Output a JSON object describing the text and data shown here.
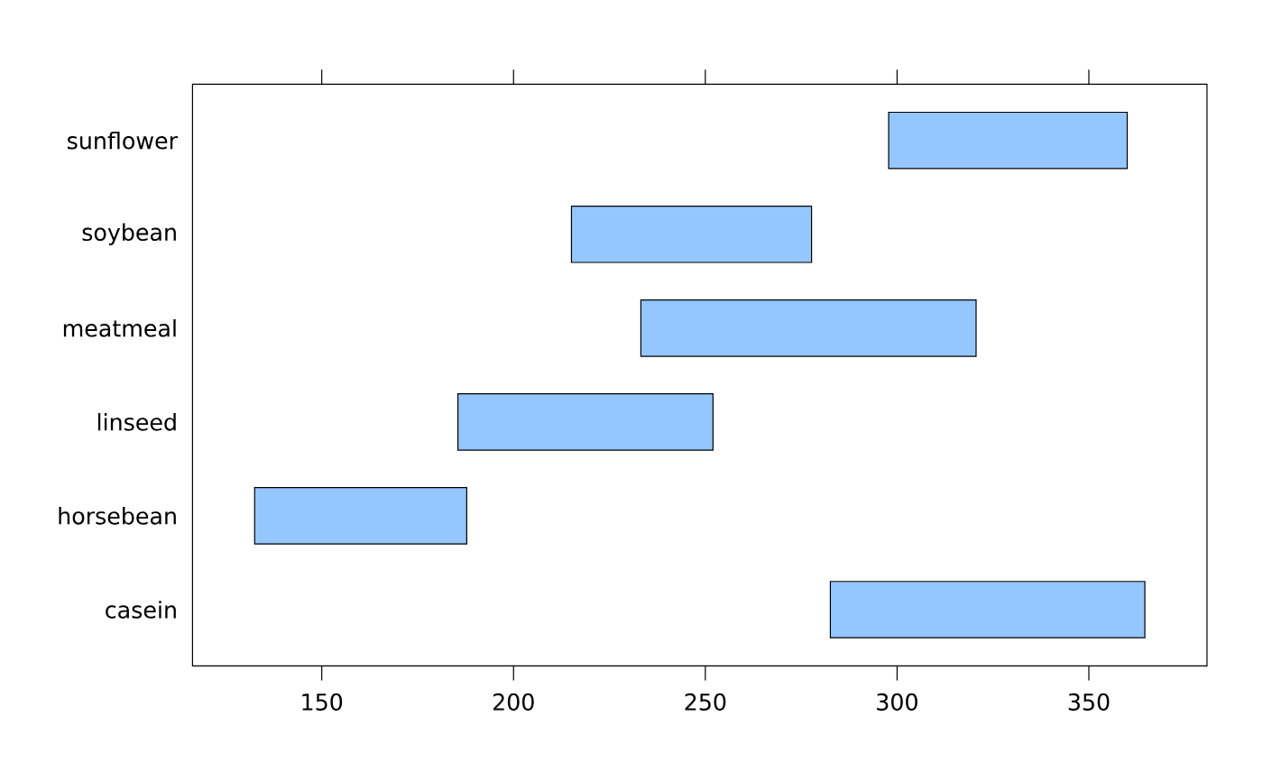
{
  "chart_data": {
    "type": "bar",
    "orientation": "horizontal",
    "categories": [
      "sunflower",
      "soybean",
      "meatmeal",
      "linseed",
      "horsebean",
      "casein"
    ],
    "base": [
      297.8,
      215.1,
      233.2,
      185.5,
      132.5,
      282.6
    ],
    "values": [
      62.2,
      62.6,
      87.4,
      66.5,
      55.3,
      82.0
    ],
    "color": "#94c6ff",
    "xlim": [
      116.3,
      380.8
    ],
    "xticks": [
      150,
      200,
      250,
      300,
      350
    ]
  }
}
